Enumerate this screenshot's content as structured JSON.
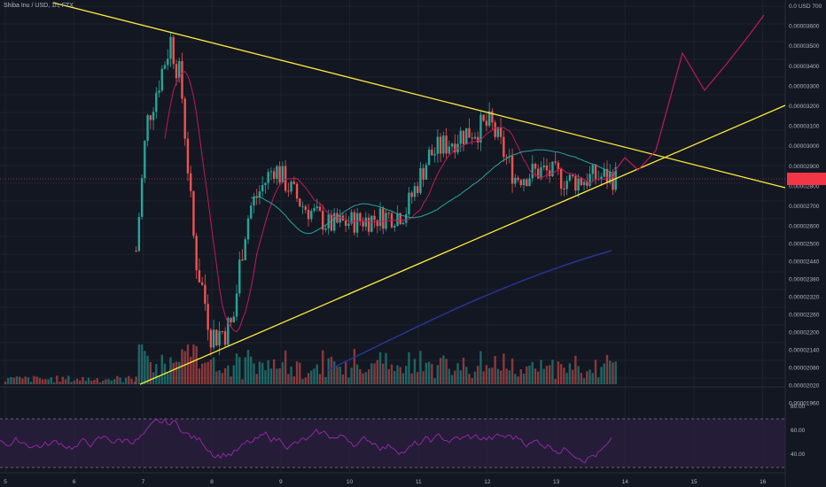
{
  "header": {
    "title": "Shiba Inu / USD, 1h, FTX"
  },
  "colors": {
    "background": "#131722",
    "grid": "#1e222d",
    "up": "#26a69a",
    "down": "#ef5350",
    "trendline": "#ffeb3b",
    "ma_red": "#c2185b",
    "ma_teal": "#26a69a",
    "ma_blue": "#283593",
    "projection": "#c2185b",
    "rsi": "#9c27b0",
    "price_tag": "#f23645"
  },
  "chart_data": {
    "type": "candlestick",
    "title": "Shiba Inu / USD, 1h, FTX",
    "x_ticks": [
      "5",
      "6",
      "7",
      "8",
      "9",
      "10",
      "11",
      "12",
      "13",
      "14",
      "15",
      "16"
    ],
    "y_axis_labels": [
      "0.0 USD 700",
      "0.00003600",
      "0.00003500",
      "0.00003400",
      "0.00003300",
      "0.00003200",
      "0.00003100",
      "0.00003000",
      "0.00002900",
      "0.00002800",
      "0.00002700",
      "0.00002600",
      "0.00002500",
      "0.00002440",
      "0.00002380",
      "0.00002320",
      "0.00002260",
      "0.00002200",
      "0.00002140",
      "0.00002080",
      "0.00002020",
      "0.00001960"
    ],
    "current_price_marker": "0.00002850",
    "price_series_approx": [
      {
        "day": 6.9,
        "price": 2.5e-05
      },
      {
        "day": 7.05,
        "price": 3.1e-05
      },
      {
        "day": 7.4,
        "price": 3.5e-05
      },
      {
        "day": 7.55,
        "price": 3.3e-05
      },
      {
        "day": 7.75,
        "price": 2.5e-05
      },
      {
        "day": 8.0,
        "price": 2.25e-05
      },
      {
        "day": 8.3,
        "price": 2.28e-05
      },
      {
        "day": 8.55,
        "price": 2.7e-05
      },
      {
        "day": 8.9,
        "price": 2.9e-05
      },
      {
        "day": 9.3,
        "price": 2.72e-05
      },
      {
        "day": 9.7,
        "price": 2.62e-05
      },
      {
        "day": 10.3,
        "price": 2.65e-05
      },
      {
        "day": 10.8,
        "price": 2.68e-05
      },
      {
        "day": 11.15,
        "price": 2.95e-05
      },
      {
        "day": 11.6,
        "price": 3.05e-05
      },
      {
        "day": 12.05,
        "price": 3.1e-05
      },
      {
        "day": 12.4,
        "price": 2.85e-05
      },
      {
        "day": 12.8,
        "price": 2.88e-05
      },
      {
        "day": 13.2,
        "price": 2.83e-05
      },
      {
        "day": 13.6,
        "price": 2.85e-05
      },
      {
        "day": 13.9,
        "price": 2.85e-05
      }
    ],
    "rsi_levels": [
      "80.00",
      "60.00",
      "40.00"
    ],
    "annotations": [
      "symmetrical triangle trendlines",
      "projected breakout path"
    ]
  }
}
